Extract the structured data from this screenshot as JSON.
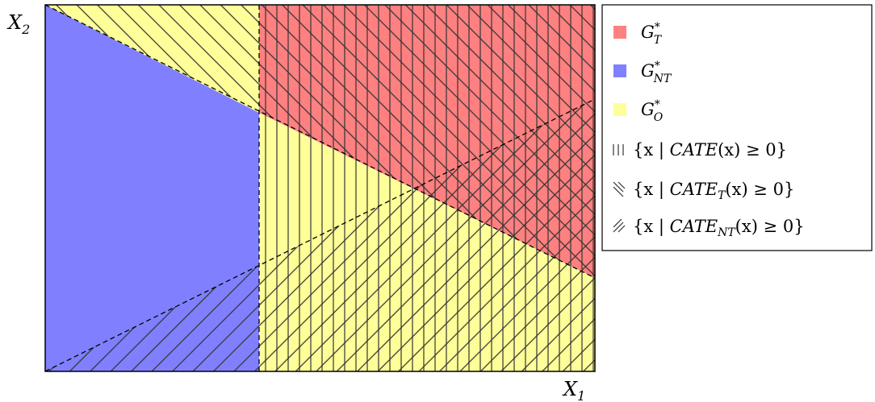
{
  "axes": {
    "x_label": "X",
    "x_label_sub": "1",
    "y_label": "X",
    "y_label_sub": "2"
  },
  "colors": {
    "treated": "#ff8080",
    "not_treated": "#8080ff",
    "other": "#ffff99",
    "hatch": "#333333"
  },
  "legend": {
    "g_t": {
      "main": "G",
      "sup": "*",
      "sub": "T"
    },
    "g_nt": {
      "main": "G",
      "sup": "*",
      "sub": "NT"
    },
    "g_o": {
      "main": "G",
      "sup": "*",
      "sub": "O"
    },
    "cate": {
      "pre": "{x | ",
      "func": "CATE",
      "sub": "",
      "post": "(x) ≥ 0}"
    },
    "cate_t": {
      "pre": "{x | ",
      "func": "CATE",
      "sub": "T",
      "post": "(x) ≥ 0}"
    },
    "cate_nt": {
      "pre": "{x | ",
      "func": "CATE",
      "sub": "NT",
      "post": "(x) ≥ 0}"
    }
  }
}
